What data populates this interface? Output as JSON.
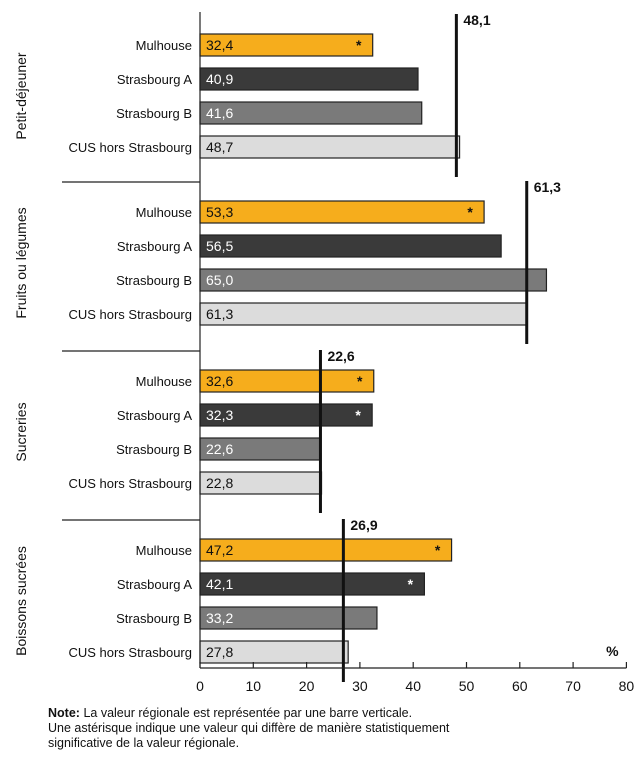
{
  "chart_data": {
    "type": "bar",
    "orientation": "horizontal",
    "xaxis": {
      "min": 0,
      "max": 80,
      "ticks": [
        0,
        10,
        20,
        30,
        40,
        50,
        60,
        70,
        80
      ],
      "unit": "%"
    },
    "categories": [
      "Mulhouse",
      "Strasbourg A",
      "Strasbourg B",
      "CUS hors Strasbourg"
    ],
    "colors": {
      "Mulhouse": "#f6ad1c",
      "Strasbourg A": "#3a3a3a",
      "Strasbourg B": "#7a7a7a",
      "CUS hors Strasbourg": "#dcdcdc"
    },
    "groups": [
      {
        "label": "Petit-déjeuner",
        "regional": 48.1,
        "regional_label": "48,1",
        "bars": [
          {
            "category": "Mulhouse",
            "value": 32.4,
            "label": "32,4",
            "significant": true
          },
          {
            "category": "Strasbourg A",
            "value": 40.9,
            "label": "40,9",
            "significant": false
          },
          {
            "category": "Strasbourg B",
            "value": 41.6,
            "label": "41,6",
            "significant": false
          },
          {
            "category": "CUS hors Strasbourg",
            "value": 48.7,
            "label": "48,7",
            "significant": false
          }
        ]
      },
      {
        "label": "Fruits ou légumes",
        "regional": 61.3,
        "regional_label": "61,3",
        "bars": [
          {
            "category": "Mulhouse",
            "value": 53.3,
            "label": "53,3",
            "significant": true
          },
          {
            "category": "Strasbourg A",
            "value": 56.5,
            "label": "56,5",
            "significant": false
          },
          {
            "category": "Strasbourg B",
            "value": 65.0,
            "label": "65,0",
            "significant": false
          },
          {
            "category": "CUS hors Strasbourg",
            "value": 61.3,
            "label": "61,3",
            "significant": false
          }
        ]
      },
      {
        "label": "Sucreries",
        "regional": 22.6,
        "regional_label": "22,6",
        "bars": [
          {
            "category": "Mulhouse",
            "value": 32.6,
            "label": "32,6",
            "significant": true
          },
          {
            "category": "Strasbourg A",
            "value": 32.3,
            "label": "32,3",
            "significant": true
          },
          {
            "category": "Strasbourg B",
            "value": 22.6,
            "label": "22,6",
            "significant": false
          },
          {
            "category": "CUS hors Strasbourg",
            "value": 22.8,
            "label": "22,8",
            "significant": false
          }
        ]
      },
      {
        "label": "Boissons sucrées",
        "regional": 26.9,
        "regional_label": "26,9",
        "bars": [
          {
            "category": "Mulhouse",
            "value": 47.2,
            "label": "47,2",
            "significant": true
          },
          {
            "category": "Strasbourg A",
            "value": 42.1,
            "label": "42,1",
            "significant": true
          },
          {
            "category": "Strasbourg B",
            "value": 33.2,
            "label": "33,2",
            "significant": false
          },
          {
            "category": "CUS hors Strasbourg",
            "value": 27.8,
            "label": "27,8",
            "significant": false
          }
        ]
      }
    ],
    "significance_marker": "*"
  },
  "note": {
    "label": "Note:",
    "line1": "La valeur régionale est représentée par une barre verticale.",
    "line2": "Une astérisque indique une valeur qui diffère de manière statistiquement",
    "line3": "significative de la valeur régionale."
  }
}
